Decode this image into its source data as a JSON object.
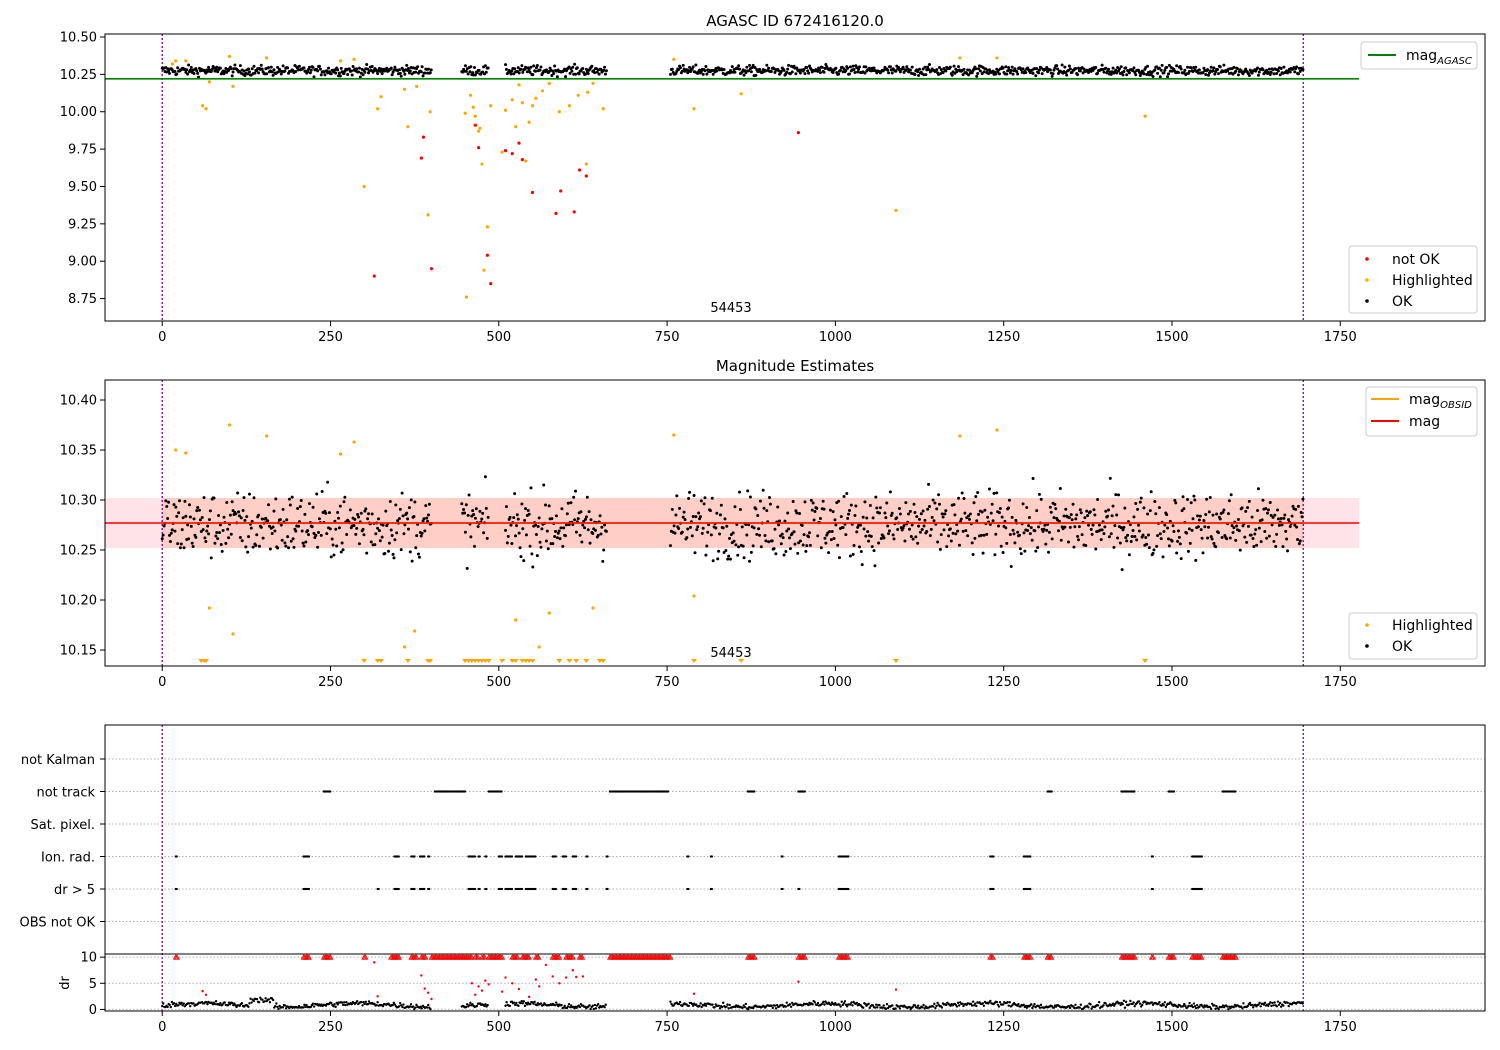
{
  "figure": {
    "top_title": "AGASC ID 672416120.0",
    "middle_title": "Magnitude Estimates",
    "top_annotation": "54453",
    "middle_annotation": "54453"
  },
  "chart_data": [
    {
      "type": "scatter",
      "title": "AGASC ID 672416120.0",
      "xlim": [
        -85,
        1965
      ],
      "ylim": [
        8.6,
        10.52
      ],
      "x_ticks": [
        "0",
        "250",
        "500",
        "750",
        "1000",
        "1250",
        "1500",
        "1750"
      ],
      "x_tick_values": [
        0,
        250,
        500,
        750,
        1000,
        1250,
        1500,
        1750
      ],
      "y_ticks": [
        "8.75",
        "9.00",
        "9.25",
        "9.50",
        "9.75",
        "10.00",
        "10.25",
        "10.50"
      ],
      "y_tick_values": [
        8.75,
        9.0,
        9.25,
        9.5,
        9.75,
        10.0,
        10.25,
        10.5
      ],
      "vlines": [
        0,
        1695
      ],
      "mag_agasc": {
        "value": 10.22,
        "x_range": [
          -85,
          1778
        ]
      },
      "annotation": {
        "text": "54453",
        "x": 845,
        "y": 8.66
      },
      "legends": [
        {
          "position": "top-right",
          "entries": [
            {
              "label": "mag",
              "subscript": "AGASC",
              "color": "#008000",
              "kind": "line"
            }
          ]
        },
        {
          "position": "bottom-right",
          "entries": [
            {
              "label": "not OK",
              "color": "#ff0000",
              "kind": "dot"
            },
            {
              "label": "Highlighted",
              "color": "#ffa500",
              "kind": "dot"
            },
            {
              "label": "OK",
              "color": "#000000",
              "kind": "dot"
            }
          ]
        }
      ],
      "ok_segments": [
        [
          0,
          400
        ],
        [
          445,
          485
        ],
        [
          510,
          660
        ],
        [
          755,
          1695
        ]
      ],
      "ok_level": {
        "mean": 10.275,
        "spread": 0.022
      },
      "highlighted": [
        [
          15,
          10.32
        ],
        [
          20,
          10.34
        ],
        [
          35,
          10.34
        ],
        [
          60,
          10.04
        ],
        [
          65,
          10.02
        ],
        [
          70,
          10.2
        ],
        [
          100,
          10.37
        ],
        [
          105,
          10.17
        ],
        [
          155,
          10.36
        ],
        [
          265,
          10.34
        ],
        [
          285,
          10.35
        ],
        [
          300,
          9.5
        ],
        [
          320,
          10.02
        ],
        [
          325,
          10.1
        ],
        [
          360,
          10.15
        ],
        [
          365,
          9.9
        ],
        [
          378,
          10.17
        ],
        [
          395,
          9.31
        ],
        [
          398,
          10.0
        ],
        [
          450,
          9.99
        ],
        [
          452,
          8.76
        ],
        [
          458,
          10.11
        ],
        [
          462,
          10.03
        ],
        [
          465,
          9.97
        ],
        [
          466,
          9.91
        ],
        [
          470,
          9.87
        ],
        [
          472,
          9.89
        ],
        [
          475,
          9.65
        ],
        [
          478,
          8.94
        ],
        [
          483,
          9.23
        ],
        [
          488,
          10.04
        ],
        [
          505,
          9.73
        ],
        [
          510,
          10.01
        ],
        [
          520,
          10.08
        ],
        [
          525,
          9.9
        ],
        [
          530,
          10.18
        ],
        [
          535,
          10.06
        ],
        [
          540,
          9.67
        ],
        [
          545,
          9.93
        ],
        [
          550,
          10.04
        ],
        [
          555,
          10.09
        ],
        [
          565,
          10.14
        ],
        [
          575,
          10.19
        ],
        [
          590,
          10.0
        ],
        [
          605,
          10.04
        ],
        [
          618,
          10.11
        ],
        [
          630,
          9.65
        ],
        [
          632,
          10.13
        ],
        [
          640,
          10.19
        ],
        [
          655,
          10.02
        ],
        [
          760,
          10.35
        ],
        [
          790,
          10.02
        ],
        [
          860,
          10.12
        ],
        [
          1090,
          9.34
        ],
        [
          1185,
          10.36
        ],
        [
          1240,
          10.36
        ],
        [
          1460,
          9.97
        ]
      ],
      "not_ok": [
        [
          315,
          8.9
        ],
        [
          385,
          9.69
        ],
        [
          388,
          9.83
        ],
        [
          400,
          8.95
        ],
        [
          465,
          9.91
        ],
        [
          470,
          9.76
        ],
        [
          483,
          9.04
        ],
        [
          488,
          8.85
        ],
        [
          510,
          9.74
        ],
        [
          520,
          9.72
        ],
        [
          530,
          9.79
        ],
        [
          535,
          9.68
        ],
        [
          550,
          9.46
        ],
        [
          585,
          9.32
        ],
        [
          592,
          9.47
        ],
        [
          612,
          9.33
        ],
        [
          620,
          9.61
        ],
        [
          630,
          9.57
        ],
        [
          945,
          9.86
        ]
      ]
    },
    {
      "type": "scatter",
      "title": "Magnitude Estimates",
      "xlim": [
        -85,
        1965
      ],
      "ylim": [
        10.134,
        10.42
      ],
      "x_ticks": [
        "0",
        "250",
        "500",
        "750",
        "1000",
        "1250",
        "1500",
        "1750"
      ],
      "x_tick_values": [
        0,
        250,
        500,
        750,
        1000,
        1250,
        1500,
        1750
      ],
      "y_ticks": [
        "10.15",
        "10.20",
        "10.25",
        "10.30",
        "10.35",
        "10.40"
      ],
      "y_tick_values": [
        10.15,
        10.2,
        10.25,
        10.3,
        10.35,
        10.4
      ],
      "vlines": [
        0,
        1695
      ],
      "mag": {
        "value": 10.277,
        "band": [
          10.252,
          10.302
        ],
        "x_range": [
          -85,
          1778
        ]
      },
      "mag_obsid": {
        "value": 10.277,
        "band": [
          10.252,
          10.302
        ],
        "x_range": [
          0,
          1695
        ]
      },
      "annotation": {
        "text": "54453",
        "x": 845,
        "y": 10.145
      },
      "legends": [
        {
          "position": "top-right",
          "entries": [
            {
              "label": "mag",
              "subscript": "OBSID",
              "color": "#ffa500",
              "kind": "line"
            },
            {
              "label": "mag",
              "subscript": "",
              "color": "#ff0000",
              "kind": "line"
            }
          ]
        },
        {
          "position": "bottom-right",
          "entries": [
            {
              "label": "Highlighted",
              "color": "#ffa500",
              "kind": "dot"
            },
            {
              "label": "OK",
              "color": "#000000",
              "kind": "dot"
            }
          ]
        }
      ],
      "ok_segments": [
        [
          0,
          400
        ],
        [
          445,
          485
        ],
        [
          510,
          660
        ],
        [
          755,
          1695
        ]
      ],
      "ok_level": {
        "mean": 10.275,
        "spread": 0.022
      },
      "highlighted": [
        [
          20,
          10.35
        ],
        [
          35,
          10.347
        ],
        [
          70,
          10.192
        ],
        [
          100,
          10.375
        ],
        [
          105,
          10.166
        ],
        [
          155,
          10.364
        ],
        [
          265,
          10.346
        ],
        [
          285,
          10.358
        ],
        [
          360,
          10.153
        ],
        [
          375,
          10.169
        ],
        [
          525,
          10.18
        ],
        [
          560,
          10.153
        ],
        [
          575,
          10.187
        ],
        [
          640,
          10.192
        ],
        [
          760,
          10.365
        ],
        [
          790,
          10.204
        ],
        [
          1185,
          10.364
        ],
        [
          1240,
          10.37
        ]
      ],
      "below_axis_markers": [
        58,
        62,
        65,
        300,
        320,
        325,
        365,
        395,
        398,
        450,
        455,
        460,
        465,
        470,
        475,
        480,
        485,
        505,
        520,
        525,
        535,
        540,
        545,
        550,
        590,
        605,
        615,
        630,
        650,
        655,
        790,
        860,
        1090,
        1460
      ]
    },
    {
      "type": "scatter",
      "title": "",
      "xlim": [
        -85,
        1965
      ],
      "x_ticks": [
        "0",
        "250",
        "500",
        "750",
        "1000",
        "1250",
        "1500",
        "1750"
      ],
      "x_tick_values": [
        0,
        250,
        500,
        750,
        1000,
        1250,
        1500,
        1750
      ],
      "vlines": [
        0,
        1695
      ],
      "flag_rows": [
        "not Kalman",
        "not track",
        "Sat. pixel.",
        "Ion. rad.",
        "dr > 5",
        "OBS not OK"
      ],
      "flags": {
        "not track": [
          [
            240,
            250
          ],
          [
            405,
            450
          ],
          [
            485,
            505
          ],
          [
            665,
            752
          ],
          [
            870,
            880
          ],
          [
            945,
            955
          ],
          [
            1315,
            1322
          ],
          [
            1425,
            1445
          ],
          [
            1495,
            1503
          ],
          [
            1575,
            1595
          ]
        ],
        "Ion. rad.": [
          [
            20,
            22
          ],
          [
            210,
            218
          ],
          [
            345,
            352
          ],
          [
            370,
            375
          ],
          [
            383,
            390
          ],
          [
            395,
            398
          ],
          [
            455,
            465
          ],
          [
            470,
            473
          ],
          [
            480,
            483
          ],
          [
            500,
            505
          ],
          [
            510,
            520
          ],
          [
            525,
            535
          ],
          [
            540,
            555
          ],
          [
            580,
            585
          ],
          [
            595,
            600
          ],
          [
            610,
            615
          ],
          [
            630,
            633
          ],
          [
            660,
            663
          ],
          [
            780,
            783
          ],
          [
            815,
            818
          ],
          [
            920,
            923
          ],
          [
            1005,
            1020
          ],
          [
            1230,
            1235
          ],
          [
            1280,
            1290
          ],
          [
            1470,
            1473
          ],
          [
            1530,
            1545
          ]
        ],
        "dr > 5": [
          [
            20,
            22
          ],
          [
            210,
            218
          ],
          [
            320,
            323
          ],
          [
            345,
            352
          ],
          [
            370,
            375
          ],
          [
            383,
            390
          ],
          [
            395,
            398
          ],
          [
            455,
            465
          ],
          [
            470,
            473
          ],
          [
            480,
            483
          ],
          [
            500,
            505
          ],
          [
            510,
            520
          ],
          [
            525,
            535
          ],
          [
            540,
            555
          ],
          [
            580,
            585
          ],
          [
            595,
            600
          ],
          [
            610,
            615
          ],
          [
            630,
            633
          ],
          [
            660,
            663
          ],
          [
            780,
            783
          ],
          [
            815,
            818
          ],
          [
            920,
            923
          ],
          [
            945,
            948
          ],
          [
            1005,
            1020
          ],
          [
            1230,
            1235
          ],
          [
            1280,
            1290
          ],
          [
            1470,
            1473
          ],
          [
            1530,
            1545
          ]
        ]
      },
      "dr": {
        "ylabel": "dr",
        "ylim": [
          -0.3,
          10.6
        ],
        "y_ticks": [
          "0",
          "5",
          "10"
        ],
        "y_tick_values": [
          0,
          5,
          10
        ],
        "clip_value": 10,
        "ok_segments": [
          [
            0,
            400
          ],
          [
            445,
            485
          ],
          [
            510,
            660
          ],
          [
            755,
            1695
          ]
        ],
        "not_ok_at_clip": [
          [
            20,
            22
          ],
          [
            210,
            218
          ],
          [
            240,
            250
          ],
          [
            300,
            302
          ],
          [
            340,
            352
          ],
          [
            370,
            378
          ],
          [
            385,
            392
          ],
          [
            400,
            460
          ],
          [
            465,
            470
          ],
          [
            475,
            480
          ],
          [
            485,
            505
          ],
          [
            520,
            528
          ],
          [
            535,
            545
          ],
          [
            555,
            560
          ],
          [
            580,
            590
          ],
          [
            600,
            610
          ],
          [
            620,
            625
          ],
          [
            665,
            755
          ],
          [
            870,
            880
          ],
          [
            945,
            955
          ],
          [
            1005,
            1020
          ],
          [
            1230,
            1235
          ],
          [
            1280,
            1290
          ],
          [
            1315,
            1322
          ],
          [
            1425,
            1445
          ],
          [
            1470,
            1473
          ],
          [
            1495,
            1503
          ],
          [
            1530,
            1545
          ],
          [
            1575,
            1595
          ]
        ],
        "not_ok_values": [
          [
            60,
            3.5
          ],
          [
            65,
            2.8
          ],
          [
            315,
            9.0
          ],
          [
            320,
            2.5
          ],
          [
            385,
            6.5
          ],
          [
            390,
            4.0
          ],
          [
            395,
            3.2
          ],
          [
            400,
            2.0
          ],
          [
            460,
            5.0
          ],
          [
            465,
            2.8
          ],
          [
            470,
            4.4
          ],
          [
            475,
            3.6
          ],
          [
            480,
            5.5
          ],
          [
            485,
            4.8
          ],
          [
            505,
            3.4
          ],
          [
            510,
            6.1
          ],
          [
            520,
            5.0
          ],
          [
            530,
            3.9
          ],
          [
            545,
            2.4
          ],
          [
            555,
            5.7
          ],
          [
            560,
            4.4
          ],
          [
            570,
            8.5
          ],
          [
            580,
            6.3
          ],
          [
            590,
            5.0
          ],
          [
            600,
            6.1
          ],
          [
            610,
            7.5
          ],
          [
            615,
            6.2
          ],
          [
            625,
            6.3
          ],
          [
            790,
            3.0
          ],
          [
            945,
            5.3
          ],
          [
            1090,
            3.8
          ]
        ]
      }
    }
  ]
}
